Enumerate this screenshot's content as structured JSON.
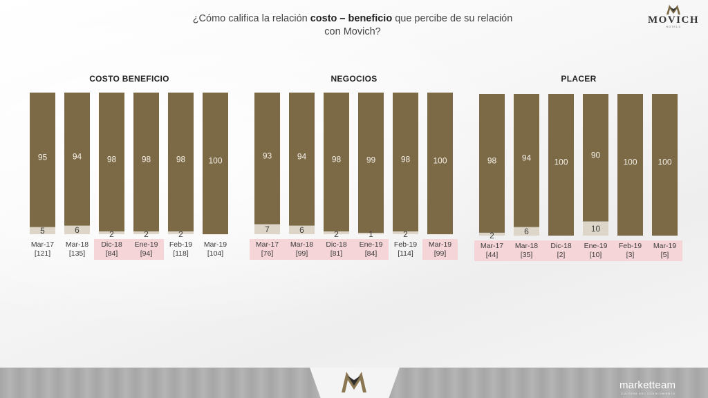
{
  "header": {
    "question_pre": "¿Cómo califica la relación ",
    "question_bold": "costo – beneficio",
    "question_post": " que percibe de su relación",
    "question_line2": "con Movich?"
  },
  "logo": {
    "word": "MOVICH",
    "sub": "HOTELS"
  },
  "footer": {
    "brand": "marketteam",
    "brand_sub": "CULTURA DEL CONOCIMIENTO"
  },
  "colors": {
    "bar_main": "#7c6a47",
    "bar_rest": "#ddd6c8",
    "highlight": "#f6d5d8",
    "label": "#3b3b3b"
  },
  "chart_data": [
    {
      "type": "bar",
      "title": "COSTO BENEFICIO",
      "stacked": true,
      "categories": [
        "Mar-17",
        "Mar-18",
        "Dic-18",
        "Ene-19",
        "Feb-19",
        "Mar-19"
      ],
      "bases": [
        "[121]",
        "[135]",
        "[84]",
        "[94]",
        "[118]",
        "[104]"
      ],
      "highlighted": [
        false,
        false,
        true,
        true,
        false,
        false
      ],
      "series": [
        {
          "values": [
            95,
            94,
            98,
            98,
            98,
            100
          ]
        },
        {
          "values": [
            5,
            6,
            2,
            2,
            2,
            0
          ]
        }
      ],
      "ylim": [
        0,
        100
      ]
    },
    {
      "type": "bar",
      "title": "NEGOCIOS",
      "stacked": true,
      "categories": [
        "Mar-17",
        "Mar-18",
        "Dic-18",
        "Ene-19",
        "Feb-19",
        "Mar-19"
      ],
      "bases": [
        "[76]",
        "[99]",
        "[81]",
        "[84]",
        "[114]",
        "[99]"
      ],
      "highlighted": [
        true,
        true,
        true,
        true,
        false,
        true
      ],
      "series": [
        {
          "values": [
            93,
            94,
            98,
            99,
            98,
            100
          ]
        },
        {
          "values": [
            7,
            6,
            2,
            1,
            2,
            0
          ]
        }
      ],
      "ylim": [
        0,
        100
      ]
    },
    {
      "type": "bar",
      "title": "PLACER",
      "stacked": true,
      "categories": [
        "Mar-17",
        "Mar-18",
        "Dic-18",
        "Ene-19",
        "Feb-19",
        "Mar-19"
      ],
      "bases": [
        "[44]",
        "[35]",
        "[2]",
        "[10]",
        "[3]",
        "[5]"
      ],
      "highlighted": [
        true,
        true,
        true,
        true,
        true,
        true
      ],
      "series": [
        {
          "values": [
            98,
            94,
            100,
            90,
            100,
            100
          ]
        },
        {
          "values": [
            2,
            6,
            0,
            10,
            0,
            0
          ]
        }
      ],
      "ylim": [
        0,
        100
      ]
    }
  ]
}
